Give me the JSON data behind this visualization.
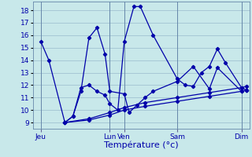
{
  "background_color": "#c8e8ea",
  "grid_color": "#99bbcc",
  "line_color": "#0000aa",
  "xlabel": "Température (°c)",
  "ylim": [
    8.5,
    18.7
  ],
  "yticks": [
    9,
    10,
    11,
    12,
    13,
    14,
    15,
    16,
    17,
    18
  ],
  "xlim": [
    -0.5,
    13.0
  ],
  "day_x": [
    0,
    4.3,
    5.2,
    8.5,
    12.5
  ],
  "day_labels": [
    "Jeu",
    "Lun",
    "Ven",
    "Sam",
    "Dim"
  ],
  "line1_x": [
    0.0,
    0.5,
    1.5,
    2.0,
    2.5,
    3.0,
    3.5,
    4.0,
    4.3,
    4.8,
    5.2,
    5.8,
    6.2,
    7.0,
    8.5,
    9.0,
    9.5,
    10.0,
    10.5,
    11.0,
    11.5,
    12.5,
    12.8
  ],
  "line1_y": [
    15.5,
    14.0,
    9.0,
    9.5,
    11.8,
    12.0,
    11.5,
    11.2,
    10.5,
    10.0,
    15.5,
    18.3,
    18.3,
    16.0,
    12.5,
    12.0,
    11.9,
    13.0,
    13.5,
    14.9,
    13.8,
    11.8,
    11.6
  ],
  "line2_x": [
    1.5,
    2.0,
    2.5,
    3.0,
    3.5,
    4.0,
    4.3,
    5.2,
    5.5,
    6.0,
    6.5,
    7.0,
    8.5,
    9.5,
    10.5,
    11.0,
    12.5,
    12.8
  ],
  "line2_y": [
    9.0,
    9.5,
    11.5,
    15.8,
    16.6,
    14.5,
    11.5,
    11.3,
    9.8,
    10.4,
    11.0,
    11.5,
    12.3,
    13.5,
    11.7,
    13.4,
    11.5,
    11.6
  ],
  "line3_x": [
    1.5,
    3.0,
    4.3,
    5.2,
    6.5,
    8.5,
    10.5,
    12.5,
    12.8
  ],
  "line3_y": [
    9.0,
    9.3,
    9.8,
    10.2,
    10.6,
    11.0,
    11.4,
    11.8,
    11.9
  ],
  "line4_x": [
    1.5,
    3.0,
    4.3,
    5.2,
    6.5,
    8.5,
    10.5,
    12.5,
    12.8
  ],
  "line4_y": [
    9.0,
    9.2,
    9.6,
    10.0,
    10.3,
    10.7,
    11.1,
    11.5,
    11.6
  ]
}
